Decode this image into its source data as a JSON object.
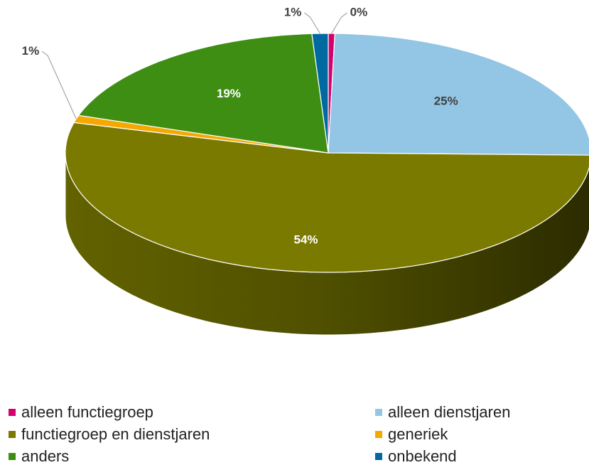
{
  "chart_data": {
    "type": "pie",
    "categories": [
      "alleen functiegroep",
      "alleen dienstjaren",
      "functiegroep en dienstjaren",
      "generiek",
      "anders",
      "onbekend"
    ],
    "values": [
      0.4,
      25,
      54,
      1,
      19,
      1
    ],
    "value_labels": [
      "0%",
      "25%",
      "54%",
      "1%",
      "19%",
      "1%"
    ],
    "colors": [
      "#d4006f",
      "#92c6e4",
      "#7a7a00",
      "#f5a800",
      "#3e8e14",
      "#00699f"
    ],
    "legend": "bottom"
  }
}
